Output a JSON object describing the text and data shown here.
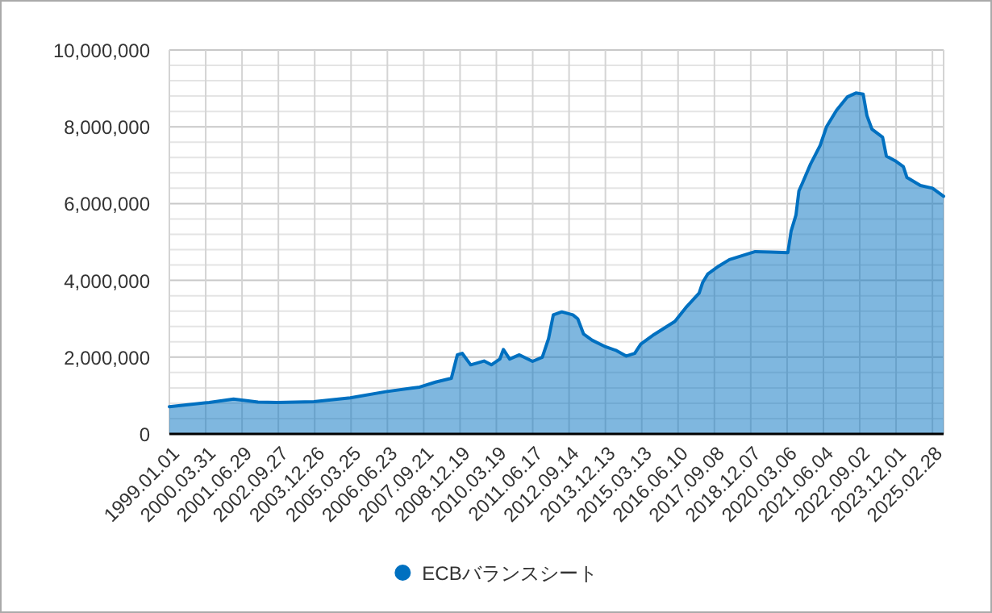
{
  "chart_data": {
    "type": "area",
    "x": [
      "1999-01-01",
      "2000-05-15",
      "2001-03-15",
      "2002-01-15",
      "2002-09-15",
      "2003-12-15",
      "2005-03-15",
      "2006-06-01",
      "2007-08-01",
      "2008-02-15",
      "2008-09-01",
      "2008-11-15",
      "2009-01-15",
      "2009-05-01",
      "2009-10-15",
      "2010-01-15",
      "2010-05-01",
      "2010-06-15",
      "2010-09-01",
      "2011-01-01",
      "2011-06-15",
      "2011-10-15",
      "2012-01-01",
      "2012-03-01",
      "2012-06-15",
      "2012-11-01",
      "2013-01-01",
      "2013-03-15",
      "2013-07-01",
      "2013-12-15",
      "2014-05-01",
      "2014-09-01",
      "2014-12-15",
      "2015-03-01",
      "2015-08-15",
      "2016-05-01",
      "2016-09-15",
      "2017-03-01",
      "2017-04-15",
      "2017-06-15",
      "2017-11-01",
      "2018-03-15",
      "2018-09-01",
      "2019-02-01",
      "2019-08-15",
      "2020-03-15",
      "2020-04-25",
      "2020-06-25",
      "2020-08-01",
      "2020-09-15",
      "2020-12-25",
      "2021-04-25",
      "2021-07-15",
      "2021-11-15",
      "2022-04-01",
      "2022-07-15",
      "2022-10-15",
      "2022-12-01",
      "2023-02-01",
      "2023-06-15",
      "2023-08-01",
      "2023-12-01",
      "2024-03-01",
      "2024-04-15",
      "2024-10-01",
      "2025-03-01",
      "2025-07-18"
    ],
    "series": [
      {
        "name": "ECBバランスシート",
        "color": "#0070c0",
        "values": [
          710000,
          820000,
          910000,
          830000,
          820000,
          840000,
          940000,
          1100000,
          1220000,
          1350000,
          1450000,
          2060000,
          2100000,
          1800000,
          1900000,
          1800000,
          1950000,
          2200000,
          1950000,
          2060000,
          1890000,
          2000000,
          2480000,
          3100000,
          3180000,
          3100000,
          3000000,
          2600000,
          2440000,
          2270000,
          2170000,
          2030000,
          2100000,
          2340000,
          2590000,
          2930000,
          3290000,
          3670000,
          3950000,
          4160000,
          4370000,
          4540000,
          4650000,
          4750000,
          4740000,
          4720000,
          5280000,
          5700000,
          6330000,
          6540000,
          7030000,
          7520000,
          8010000,
          8430000,
          8780000,
          8880000,
          8850000,
          8290000,
          7940000,
          7730000,
          7240000,
          7100000,
          6960000,
          6680000,
          6470000,
          6400000,
          6190000
        ]
      }
    ],
    "xlim": [
      "1999-01-01",
      "2025-07-18"
    ],
    "xticks": [
      {
        "value": "1999-01-01",
        "label": "1999.01.01"
      },
      {
        "value": "2000-03-31",
        "label": "2000.03.31"
      },
      {
        "value": "2001-06-29",
        "label": "2001.06.29"
      },
      {
        "value": "2002-09-27",
        "label": "2002.09.27"
      },
      {
        "value": "2003-12-26",
        "label": "2003.12.26"
      },
      {
        "value": "2005-03-25",
        "label": "2005.03.25"
      },
      {
        "value": "2006-06-23",
        "label": "2006.06.23"
      },
      {
        "value": "2007-09-21",
        "label": "2007.09.21"
      },
      {
        "value": "2008-12-19",
        "label": "2008.12.19"
      },
      {
        "value": "2010-03-19",
        "label": "2010.03.19"
      },
      {
        "value": "2011-06-17",
        "label": "2011.06.17"
      },
      {
        "value": "2012-09-14",
        "label": "2012.09.14"
      },
      {
        "value": "2013-12-13",
        "label": "2013.12.13"
      },
      {
        "value": "2015-03-13",
        "label": "2015.03.13"
      },
      {
        "value": "2016-06-10",
        "label": "2016.06.10"
      },
      {
        "value": "2017-09-08",
        "label": "2017.09.08"
      },
      {
        "value": "2018-12-07",
        "label": "2018.12.07"
      },
      {
        "value": "2020-03-06",
        "label": "2020.03.06"
      },
      {
        "value": "2021-06-04",
        "label": "2021.06.04"
      },
      {
        "value": "2022-09-02",
        "label": "2022.09.02"
      },
      {
        "value": "2023-12-01",
        "label": "2023.12.01"
      },
      {
        "value": "2025-02-28",
        "label": "2025.02.28"
      }
    ],
    "ylim": [
      0,
      10000000
    ],
    "yticks": [
      0,
      {
        "value": 2000000,
        "label": "2,000,000"
      },
      {
        "value": 4000000,
        "label": "4,000,000"
      },
      {
        "value": 6000000,
        "label": "6,000,000"
      },
      {
        "value": 8000000,
        "label": "8,000,000"
      },
      {
        "value": 10000000,
        "label": "10,000,000"
      }
    ],
    "grid": true,
    "legend": "bottom"
  }
}
